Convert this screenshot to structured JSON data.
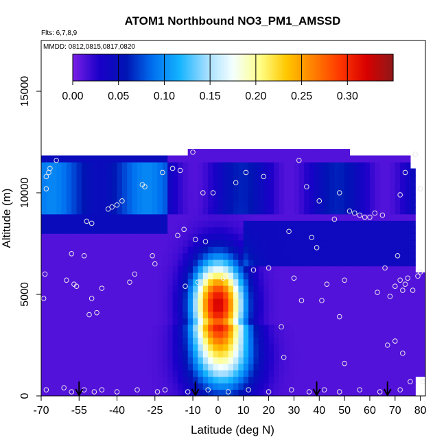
{
  "chart_data": {
    "type": "heatmap",
    "title": "ATOM1 Northbound NO3_PM1_AMSSD",
    "flights_label": "Flts: 6,7,8,9",
    "dates_label": "MMDD: 0812,0815,0817,0820",
    "xlabel": "Latitude (deg N)",
    "ylabel": "Altitude (m)",
    "xlim": [
      -70,
      82
    ],
    "ylim": [
      0,
      17500
    ],
    "x_ticks": [
      -70,
      -55,
      -40,
      -25,
      -10,
      0,
      10,
      20,
      30,
      40,
      50,
      60,
      70,
      80
    ],
    "x_tick_labels": [
      "-70",
      "-55",
      "-40",
      "-25",
      "-10",
      "0",
      "10",
      "20",
      "30",
      "40",
      "50",
      "60",
      "70",
      "80"
    ],
    "y_ticks": [
      0,
      5000,
      10000,
      15000
    ],
    "y_tick_labels": [
      "0",
      "5000",
      "10000",
      "15000"
    ],
    "colorbar": {
      "range": [
        0,
        0.35
      ],
      "ticks": [
        0.0,
        0.05,
        0.1,
        0.15,
        0.2,
        0.25,
        0.3
      ],
      "tick_labels": [
        "0.00",
        "0.05",
        "0.10",
        "0.15",
        "0.20",
        "0.25",
        "0.30"
      ],
      "colors": [
        "#7a1fe6",
        "#1a00c8",
        "#0014b4",
        "#0070f0",
        "#14b4ff",
        "#a0dcff",
        "#f4ffff",
        "#ffff88",
        "#ffc800",
        "#ff8000",
        "#ff3800",
        "#d80000",
        "#901818"
      ]
    },
    "hotspot": {
      "lat_range": [
        -5,
        5
      ],
      "alt_range": [
        3000,
        6000
      ],
      "peak_value": 0.31
    },
    "sample_points": [
      [
        -68.5,
        6000
      ],
      [
        -69,
        4800
      ],
      [
        -68,
        10200
      ],
      [
        -68,
        10800
      ],
      [
        -67,
        11000
      ],
      [
        -66.5,
        11200
      ],
      [
        -64,
        11600
      ],
      [
        -60,
        5700
      ],
      [
        -58,
        7000
      ],
      [
        -57,
        5500
      ],
      [
        -56,
        5400
      ],
      [
        -53,
        6900
      ],
      [
        -52,
        8600
      ],
      [
        -50,
        8500
      ],
      [
        -50,
        4800
      ],
      [
        -51,
        4000
      ],
      [
        -48,
        4100
      ],
      [
        -46,
        5300
      ],
      [
        -43.5,
        9200
      ],
      [
        -42,
        9300
      ],
      [
        -40,
        9400
      ],
      [
        -38,
        9600
      ],
      [
        -35,
        5600
      ],
      [
        -33,
        6000
      ],
      [
        -30,
        10400
      ],
      [
        -29,
        10300
      ],
      [
        -26,
        6900
      ],
      [
        -25,
        6500
      ],
      [
        -22,
        11000
      ],
      [
        -18,
        11200
      ],
      [
        -15,
        11100
      ],
      [
        -16,
        7900
      ],
      [
        -13.5,
        8200
      ],
      [
        -10,
        12000
      ],
      [
        -9,
        7700
      ],
      [
        -13,
        5400
      ],
      [
        -8,
        5600
      ],
      [
        -5,
        7600
      ],
      [
        -6,
        10000
      ],
      [
        -2,
        10000
      ],
      [
        2,
        5800
      ],
      [
        7,
        10500
      ],
      [
        11,
        11000
      ],
      [
        18,
        10800
      ],
      [
        14,
        6200
      ],
      [
        20,
        6300
      ],
      [
        28,
        8100
      ],
      [
        30,
        5800
      ],
      [
        32,
        11600
      ],
      [
        33,
        4700
      ],
      [
        35,
        10300
      ],
      [
        37,
        7800
      ],
      [
        39,
        7300
      ],
      [
        40,
        9600
      ],
      [
        41,
        4700
      ],
      [
        43,
        5500
      ],
      [
        46,
        8700
      ],
      [
        48,
        3900
      ],
      [
        48,
        10000
      ],
      [
        50,
        5700
      ],
      [
        52,
        9100
      ],
      [
        54,
        9000
      ],
      [
        56,
        8900
      ],
      [
        58,
        8800
      ],
      [
        60,
        8800
      ],
      [
        62,
        9000
      ],
      [
        65,
        8900
      ],
      [
        63,
        5100
      ],
      [
        66,
        6300
      ],
      [
        68,
        4900
      ],
      [
        70,
        5400
      ],
      [
        71,
        6900
      ],
      [
        72,
        5700
      ],
      [
        73,
        5200
      ],
      [
        74,
        5500
      ],
      [
        75,
        5800
      ],
      [
        77,
        5200
      ],
      [
        79,
        5900
      ],
      [
        80,
        6100
      ],
      [
        72,
        9900
      ],
      [
        74,
        11000
      ],
      [
        78,
        11900
      ],
      [
        80,
        10200
      ],
      [
        25,
        3400
      ],
      [
        26,
        1900
      ],
      [
        50,
        1600
      ],
      [
        67,
        2500
      ],
      [
        70,
        2700
      ],
      [
        73,
        2100
      ],
      [
        76,
        700
      ],
      [
        81,
        700
      ],
      [
        -68,
        300
      ],
      [
        -61,
        400
      ],
      [
        -58,
        200
      ],
      [
        -53,
        300
      ],
      [
        -49,
        200
      ],
      [
        -46,
        300
      ],
      [
        -40,
        200
      ],
      [
        -32,
        300
      ],
      [
        -24,
        200
      ],
      [
        -21,
        300
      ],
      [
        -12,
        200
      ],
      [
        -4,
        300
      ],
      [
        4,
        200
      ],
      [
        12,
        300
      ],
      [
        20,
        200
      ],
      [
        29,
        300
      ],
      [
        36,
        200
      ],
      [
        42,
        300
      ],
      [
        48,
        200
      ],
      [
        56,
        300
      ],
      [
        64,
        200
      ],
      [
        72,
        300
      ]
    ],
    "flight_markers_lat": [
      -55,
      -9,
      39,
      67
    ]
  }
}
